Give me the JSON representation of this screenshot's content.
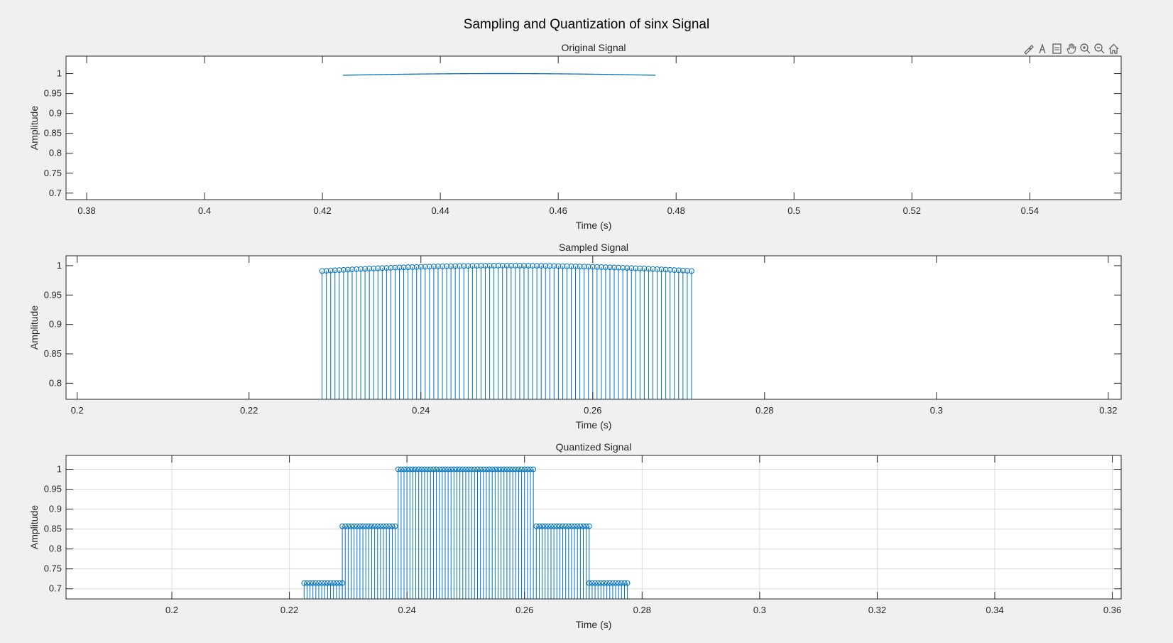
{
  "figure": {
    "title": "Sampling and Quantization of sinx Signal",
    "colors": {
      "series": "#0072BD",
      "grid": "#dcdcdc",
      "axis": "#262626",
      "background": "#f0f0f0"
    },
    "toolbar": [
      "brush-icon",
      "data-tip-icon",
      "export-icon",
      "pan-icon",
      "zoom-in-icon",
      "zoom-out-icon",
      "home-icon"
    ]
  },
  "chart_data": [
    {
      "type": "line",
      "title": "Original Signal",
      "xlabel": "Time (s)",
      "ylabel": "Amplitude",
      "xlim": [
        0.3765,
        0.5555
      ],
      "ylim": [
        0.6836,
        1.0438
      ],
      "xticks": [
        0.38,
        0.4,
        0.42,
        0.44,
        0.46,
        0.48,
        0.5,
        0.52,
        0.54
      ],
      "xticklabels": [
        "0.38",
        "0.4",
        "0.42",
        "0.44",
        "0.46",
        "0.48",
        "0.5",
        "0.52",
        "0.54"
      ],
      "yticks": [
        0.7,
        0.75,
        0.8,
        0.85,
        0.9,
        0.95,
        1
      ],
      "yticklabels": [
        "0.7",
        "0.75",
        "0.8",
        "0.85",
        "0.9",
        "0.95",
        "1"
      ],
      "grid": false,
      "function": "sin(2*pi*t/1.8)",
      "series": [
        {
          "x_range": [
            0.4235,
            0.4765
          ]
        }
      ]
    },
    {
      "type": "stem",
      "title": "Sampled Signal",
      "xlabel": "Time (s)",
      "ylabel": "Amplitude",
      "xlim": [
        0.1987,
        0.3215
      ],
      "ylim": [
        0.7727,
        1.0168
      ],
      "xticks": [
        0.2,
        0.22,
        0.24,
        0.26,
        0.28,
        0.3,
        0.32
      ],
      "xticklabels": [
        "0.2",
        "0.22",
        "0.24",
        "0.26",
        "0.28",
        "0.3",
        "0.32"
      ],
      "yticks": [
        0.8,
        0.85,
        0.9,
        0.95,
        1
      ],
      "yticklabels": [
        "0.8",
        "0.85",
        "0.9",
        "0.95",
        "1"
      ],
      "grid": false,
      "function": "sin(2*pi*t)",
      "series": [
        {
          "x_start": 0.2285,
          "x_end": 0.2715,
          "step": 0.0005
        }
      ]
    },
    {
      "type": "stem",
      "title": "Quantized Signal",
      "xlabel": "Time (s)",
      "ylabel": "Amplitude",
      "xlim": [
        0.182,
        0.3615
      ],
      "ylim": [
        0.6745,
        1.0348
      ],
      "xticks": [
        0.2,
        0.22,
        0.24,
        0.26,
        0.28,
        0.3,
        0.32,
        0.34,
        0.36
      ],
      "xticklabels": [
        "0.2",
        "0.22",
        "0.24",
        "0.26",
        "0.28",
        "0.3",
        "0.32",
        "0.34",
        "0.36"
      ],
      "yticks": [
        0.7,
        0.75,
        0.8,
        0.85,
        0.9,
        0.95,
        1
      ],
      "yticklabels": [
        "0.7",
        "0.75",
        "0.8",
        "0.85",
        "0.9",
        "0.95",
        "1"
      ],
      "grid": true,
      "series": [
        {
          "step": 0.0005,
          "segments": [
            {
              "x_start": 0.2225,
              "x_end": 0.229,
              "value": 0.7143
            },
            {
              "x_start": 0.229,
              "x_end": 0.238,
              "value": 0.8571
            },
            {
              "x_start": 0.2385,
              "x_end": 0.2615,
              "value": 1.0
            },
            {
              "x_start": 0.262,
              "x_end": 0.271,
              "value": 0.8571
            },
            {
              "x_start": 0.271,
              "x_end": 0.2775,
              "value": 0.7143
            }
          ]
        }
      ]
    }
  ]
}
